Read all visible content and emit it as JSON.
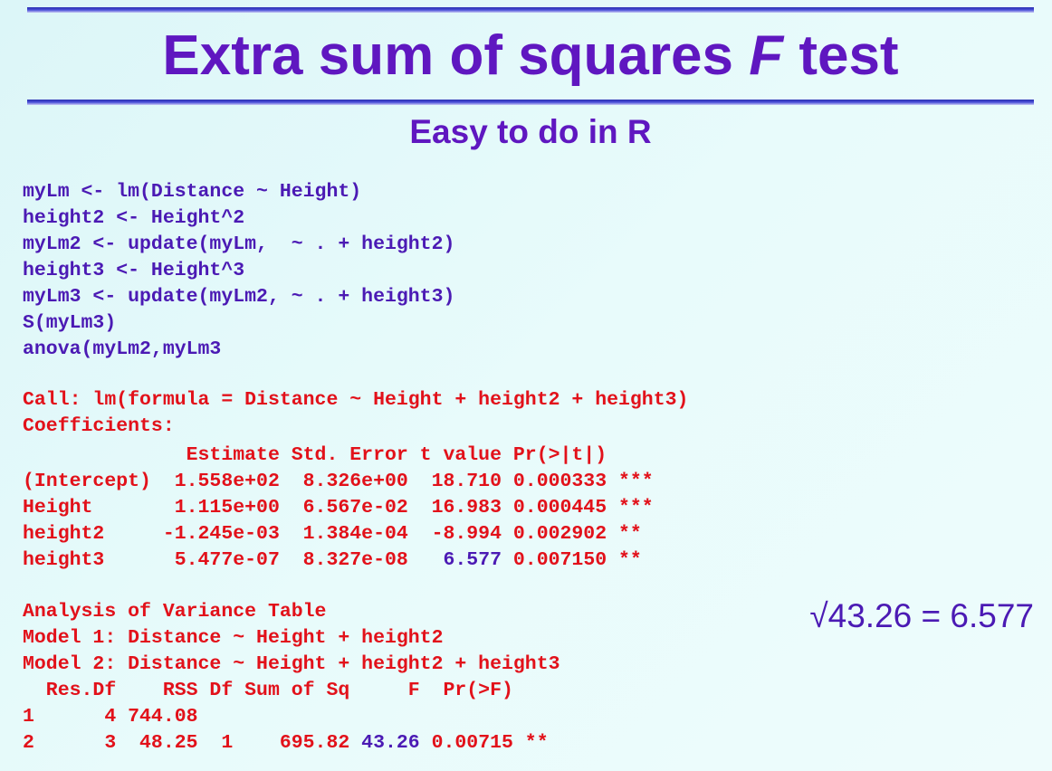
{
  "title_pre": "Extra sum of squares ",
  "title_f": "F",
  "title_post": " test",
  "subtitle": "Easy to do in R",
  "code": [
    "myLm <- lm(Distance ~ Height)",
    "height2 <- Height^2",
    "myLm2 <- update(myLm,  ~ . + height2)",
    "height3 <- Height^3",
    "myLm3 <- update(myLm2, ~ . + height3)",
    "S(myLm3)",
    "anova(myLm2,myLm3"
  ],
  "call_line": "Call: lm(formula = Distance ~ Height + height2 + height3)",
  "coef_label": "Coefficients:",
  "coef_header": "              Estimate Std. Error t value Pr(>|t|)",
  "coef_rows": [
    "(Intercept)  1.558e+02  8.326e+00  18.710 0.000333 ***",
    "Height       1.115e+00  6.567e-02  16.983 0.000445 ***",
    "height2     -1.245e-03  1.384e-04  -8.994 0.002902 **"
  ],
  "coef_h3_pre": "height3      5.477e-07  8.327e-08   ",
  "coef_h3_t": "6.577",
  "coef_h3_post": " 0.007150 **",
  "anova_title": "Analysis of Variance Table",
  "model1": "Model 1: Distance ~ Height + height2",
  "model2": "Model 2: Distance ~ Height + height2 + height3",
  "anova_header": "  Res.Df    RSS Df Sum of Sq     F  Pr(>F)",
  "anova_row1": "1      4 744.08",
  "anova_row2_pre": "2      3  48.25  1    695.82 ",
  "anova_row2_f": "43.26",
  "anova_row2_post": " 0.00715 **",
  "sqrt_note": "√43.26 = 6.577"
}
